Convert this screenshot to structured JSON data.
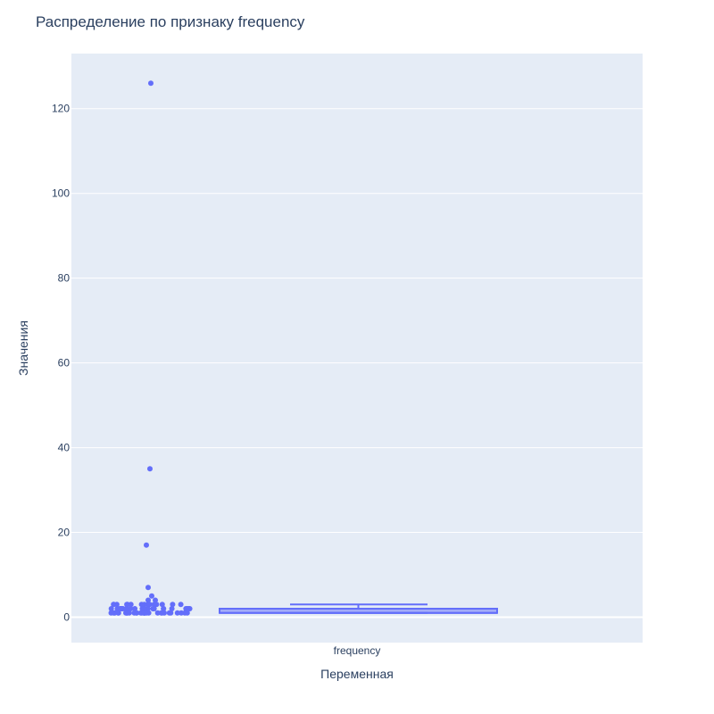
{
  "chart_data": {
    "type": "box",
    "title": "Распределение по признаку frequency",
    "xlabel": "Переменная",
    "ylabel": "Значения",
    "categories": [
      "frequency"
    ],
    "ylim": [
      -6,
      133
    ],
    "yticks": [
      0,
      20,
      40,
      60,
      80,
      100,
      120
    ],
    "grid": true,
    "legend": "none",
    "box": {
      "name": "frequency",
      "lower_fence": 1,
      "q1": 1,
      "median": 1,
      "q3": 2,
      "upper_fence": 3
    },
    "outliers": [
      126,
      35,
      17,
      7,
      5,
      4,
      4,
      3,
      3,
      3,
      3,
      3,
      3,
      3,
      3,
      3,
      3,
      3,
      3,
      3,
      3,
      3,
      3,
      2,
      2,
      2,
      2,
      2,
      2,
      2,
      2,
      2,
      2,
      2,
      2,
      2,
      2,
      2,
      2,
      2,
      2,
      2,
      2,
      2,
      2,
      2,
      2,
      1,
      1,
      1,
      1,
      1,
      1,
      1,
      1,
      1,
      1,
      1,
      1,
      1,
      1,
      1,
      1,
      1,
      1,
      1,
      1,
      1,
      1,
      1,
      1,
      1,
      1,
      1,
      1,
      1,
      1,
      1,
      1
    ],
    "colors": {
      "series": "#636efa",
      "plot_bg": "#e5ecf6",
      "grid": "#ffffff",
      "text": "#2a3f5f"
    }
  }
}
